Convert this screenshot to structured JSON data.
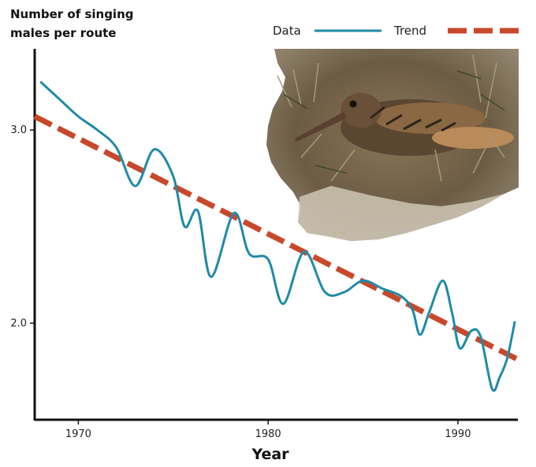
{
  "chart_data": {
    "type": "line",
    "ylabel_lines": [
      "Number of singing",
      "males per route"
    ],
    "xlabel": "Year",
    "xlim": [
      1967.7,
      1993.2
    ],
    "ylim": [
      1.5,
      3.42
    ],
    "x_ticks": [
      1970,
      1980,
      1990
    ],
    "y_ticks": [
      2.0,
      3.0
    ],
    "y_tick_labels": [
      "2.0",
      "3.0"
    ],
    "legend_position": "top-right",
    "grid": false,
    "colors": {
      "data": "#1f8aa8",
      "trend": "#c8482c",
      "axis": "#111111"
    },
    "series": [
      {
        "name": "Data",
        "style": "solid",
        "x": [
          1968.0,
          1969.0,
          1970.0,
          1971.0,
          1972.0,
          1973.0,
          1974.0,
          1975.0,
          1975.6,
          1976.3,
          1977.0,
          1978.2,
          1979.0,
          1980.0,
          1980.8,
          1981.9,
          1983.0,
          1984.0,
          1985.0,
          1986.0,
          1987.0,
          1987.6,
          1988.0,
          1988.5,
          1989.2,
          1989.7,
          1990.1,
          1990.7,
          1991.2,
          1991.8,
          1992.2,
          1992.6,
          1993.0
        ],
        "values": [
          3.25,
          3.16,
          3.07,
          3.0,
          2.91,
          2.71,
          2.9,
          2.76,
          2.5,
          2.58,
          2.24,
          2.57,
          2.36,
          2.33,
          2.1,
          2.37,
          2.16,
          2.16,
          2.22,
          2.18,
          2.14,
          2.07,
          1.94,
          2.06,
          2.22,
          2.05,
          1.87,
          1.96,
          1.93,
          1.66,
          1.72,
          1.82,
          2.01
        ]
      },
      {
        "name": "Trend",
        "style": "dashed",
        "x": [
          1967.7,
          1993.2
        ],
        "values": [
          3.07,
          1.81
        ]
      }
    ]
  },
  "photo": {
    "subject": "woodcock-bird"
  }
}
